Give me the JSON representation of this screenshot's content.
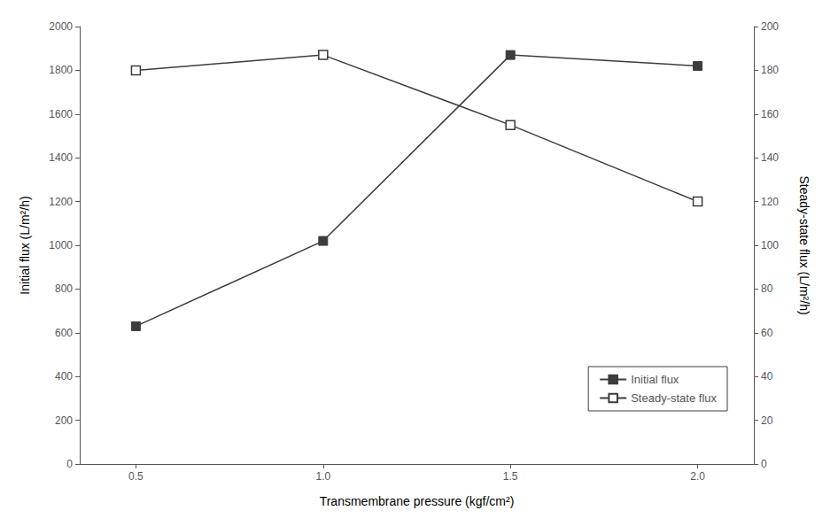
{
  "chart_data": {
    "type": "line",
    "xlabel": "Transmembrane pressure (kgf/cm²)",
    "ylabel": "Initial flux (L/m²/h)",
    "y2label": "Steady-state flux (L/m²/h)",
    "x": [
      0.5,
      1.0,
      1.5,
      2.0
    ],
    "xlim": [
      0.35,
      2.15
    ],
    "xticks": [
      0.5,
      {
        "value": 1.0,
        "label": "1.0"
      },
      1.5,
      {
        "value": 2.0,
        "label": "2.0"
      }
    ],
    "ylim": [
      0,
      2000
    ],
    "yticks": [
      0,
      200,
      400,
      600,
      800,
      1000,
      1200,
      1400,
      1600,
      1800,
      2000
    ],
    "y2lim": [
      0,
      200
    ],
    "y2ticks": [
      0,
      20,
      40,
      60,
      80,
      100,
      120,
      140,
      160,
      180,
      200
    ],
    "series": [
      {
        "name": "Initial flux",
        "color": "#3c3c3c",
        "marker": "square",
        "line_style": "solid",
        "values": [
          630,
          1020,
          1870,
          1820
        ]
      },
      {
        "name": "Steady-state flux",
        "axis": "y2",
        "color": "#3c3c3c",
        "marker": "open_square",
        "line_style": "solid",
        "values": [
          180,
          187,
          155,
          120
        ]
      }
    ],
    "legend": "lower right",
    "grid": false
  }
}
